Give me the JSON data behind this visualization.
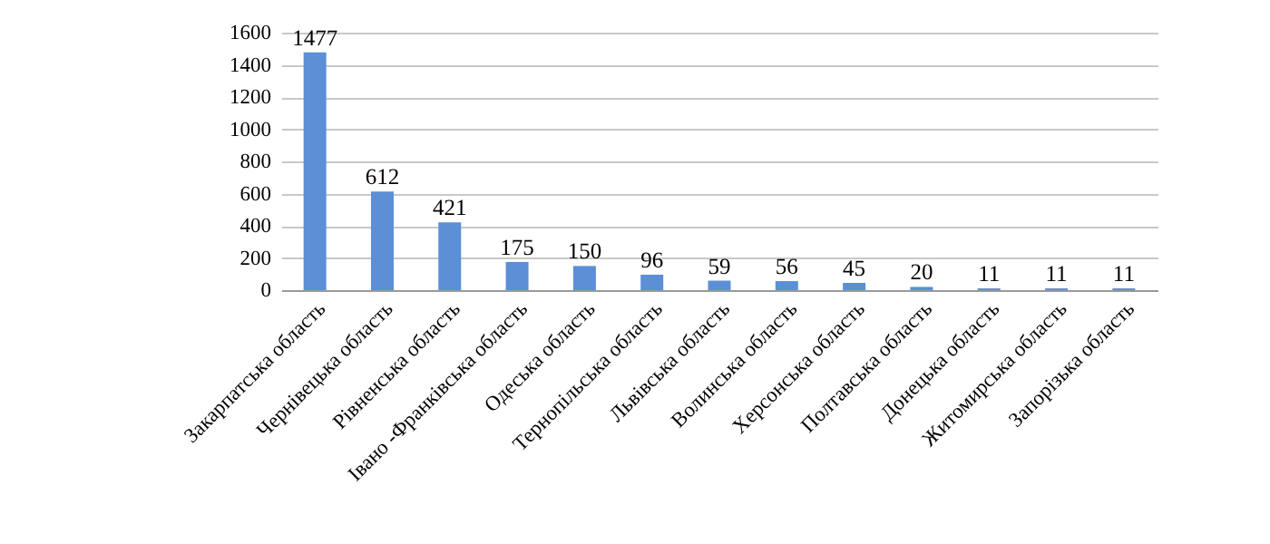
{
  "chart_data": {
    "type": "bar",
    "categories": [
      "Закарпатська область",
      "Чернівецька область",
      "Рівненська область",
      "Івано -Франківська область",
      "Одеська область",
      "Тернопільська область",
      "Львівська область",
      "Волинська область",
      "Херсонська область",
      "Полтавська область",
      "Донецька область",
      "Житомирська область",
      "Запорізька область"
    ],
    "values": [
      1477,
      612,
      421,
      175,
      150,
      96,
      59,
      56,
      45,
      20,
      11,
      11,
      11
    ],
    "color": "#5b8fd6",
    "ylim": [
      0,
      1600
    ],
    "yticks": [
      0,
      200,
      400,
      600,
      800,
      1000,
      1200,
      1400,
      1600
    ],
    "grid": "y",
    "data_labels": true
  }
}
